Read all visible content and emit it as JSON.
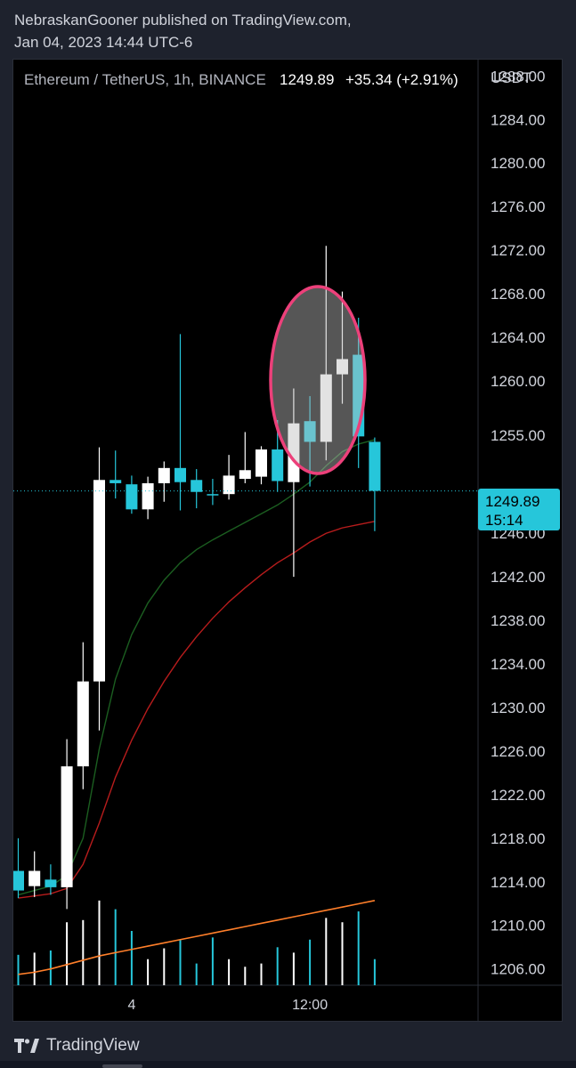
{
  "header": {
    "line1": "NebraskanGooner published on TradingView.com,",
    "line2": "Jan 04, 2023 14:44 UTC-6"
  },
  "symbol": {
    "name": "Ethereum / TetherUS, 1h, BINANCE",
    "last": "1249.89",
    "change": "+35.34 (+2.91%)"
  },
  "price_axis": {
    "currency": "USDT",
    "ticks": [
      "1288.00",
      "1284.00",
      "1280.00",
      "1276.00",
      "1272.00",
      "1268.00",
      "1264.00",
      "1260.00",
      "1255.00",
      "1246.00",
      "1242.00",
      "1238.00",
      "1234.00",
      "1230.00",
      "1226.00",
      "1222.00",
      "1218.00",
      "1214.00",
      "1210.00",
      "1206.00"
    ],
    "last_price_label": "1249.89",
    "countdown": "15:14"
  },
  "time_axis": {
    "ticks": [
      "4",
      "12:00"
    ]
  },
  "footer": {
    "brand": "TradingView"
  },
  "colors": {
    "up": "#ffffff",
    "down": "#26c6da",
    "ma_fast": "#1b5e20",
    "ma_slow": "#b71c1c",
    "volume_ma": "#ff7f2a",
    "highlight": "#ec407a",
    "last_price": "#26c6da"
  },
  "chart_data": {
    "type": "candlestick",
    "title": "Ethereum / TetherUS, 1h, BINANCE",
    "ylim": [
      1204.5,
      1289.5
    ],
    "candles": [
      {
        "o": 1215.0,
        "h": 1218.0,
        "l": 1212.5,
        "c": 1213.2
      },
      {
        "o": 1213.6,
        "h": 1216.8,
        "l": 1212.6,
        "c": 1215.0
      },
      {
        "o": 1214.2,
        "h": 1215.6,
        "l": 1212.8,
        "c": 1213.5
      },
      {
        "o": 1213.5,
        "h": 1227.1,
        "l": 1211.5,
        "c": 1224.6
      },
      {
        "o": 1224.6,
        "h": 1236.0,
        "l": 1222.5,
        "c": 1232.4
      },
      {
        "o": 1232.4,
        "h": 1253.9,
        "l": 1227.9,
        "c": 1250.9
      },
      {
        "o": 1250.9,
        "h": 1253.6,
        "l": 1249.2,
        "c": 1250.6
      },
      {
        "o": 1250.5,
        "h": 1251.3,
        "l": 1247.8,
        "c": 1248.2
      },
      {
        "o": 1248.2,
        "h": 1251.2,
        "l": 1247.3,
        "c": 1250.6
      },
      {
        "o": 1250.6,
        "h": 1252.6,
        "l": 1248.9,
        "c": 1252.0
      },
      {
        "o": 1252.0,
        "h": 1264.3,
        "l": 1248.1,
        "c": 1250.7
      },
      {
        "o": 1250.9,
        "h": 1251.9,
        "l": 1248.3,
        "c": 1249.8
      },
      {
        "o": 1249.6,
        "h": 1251.0,
        "l": 1248.6,
        "c": 1249.5
      },
      {
        "o": 1249.6,
        "h": 1253.2,
        "l": 1249.1,
        "c": 1251.3
      },
      {
        "o": 1251.0,
        "h": 1255.3,
        "l": 1250.6,
        "c": 1251.8
      },
      {
        "o": 1251.2,
        "h": 1254.0,
        "l": 1250.5,
        "c": 1253.7
      },
      {
        "o": 1253.7,
        "h": 1256.4,
        "l": 1249.8,
        "c": 1250.8
      },
      {
        "o": 1250.7,
        "h": 1259.3,
        "l": 1242.0,
        "c": 1256.1
      },
      {
        "o": 1256.3,
        "h": 1258.6,
        "l": 1250.3,
        "c": 1254.4
      },
      {
        "o": 1254.4,
        "h": 1272.4,
        "l": 1252.7,
        "c": 1260.6
      },
      {
        "o": 1260.6,
        "h": 1268.2,
        "l": 1257.9,
        "c": 1262.0
      },
      {
        "o": 1262.4,
        "h": 1265.8,
        "l": 1252.0,
        "c": 1254.9
      },
      {
        "o": 1254.4,
        "h": 1254.8,
        "l": 1246.2,
        "c": 1249.9
      }
    ],
    "ma_fast": [
      1212.8,
      1213.2,
      1213.6,
      1214.6,
      1218.0,
      1226.2,
      1232.6,
      1236.7,
      1239.6,
      1241.7,
      1243.3,
      1244.5,
      1245.4,
      1246.2,
      1247.0,
      1247.8,
      1248.6,
      1249.6,
      1250.7,
      1252.2,
      1253.5,
      1254.2,
      1254.6
    ],
    "ma_slow": [
      1212.5,
      1212.7,
      1212.9,
      1213.4,
      1215.6,
      1219.4,
      1223.6,
      1227.0,
      1229.9,
      1232.4,
      1234.6,
      1236.5,
      1238.2,
      1239.7,
      1241.0,
      1242.2,
      1243.3,
      1244.2,
      1245.2,
      1246.0,
      1246.5,
      1246.8,
      1247.1
    ],
    "volume": [
      0.28,
      0.3,
      0.32,
      0.58,
      0.6,
      0.78,
      0.7,
      0.5,
      0.24,
      0.34,
      0.42,
      0.2,
      0.44,
      0.24,
      0.17,
      0.2,
      0.35,
      0.3,
      0.42,
      0.62,
      0.58,
      0.68,
      0.24
    ],
    "volume_ma": [
      0.1,
      0.12,
      0.15,
      0.19,
      0.23,
      0.27,
      0.3,
      0.33,
      0.36,
      0.39,
      0.42,
      0.45,
      0.48,
      0.51,
      0.54,
      0.57,
      0.6,
      0.63,
      0.66,
      0.69,
      0.72,
      0.75,
      0.78
    ],
    "x_ticks": [
      {
        "index": 7,
        "label": "4"
      },
      {
        "index": 18,
        "label": "12:00"
      }
    ],
    "highlight": "ellipse around candles 19-21"
  }
}
